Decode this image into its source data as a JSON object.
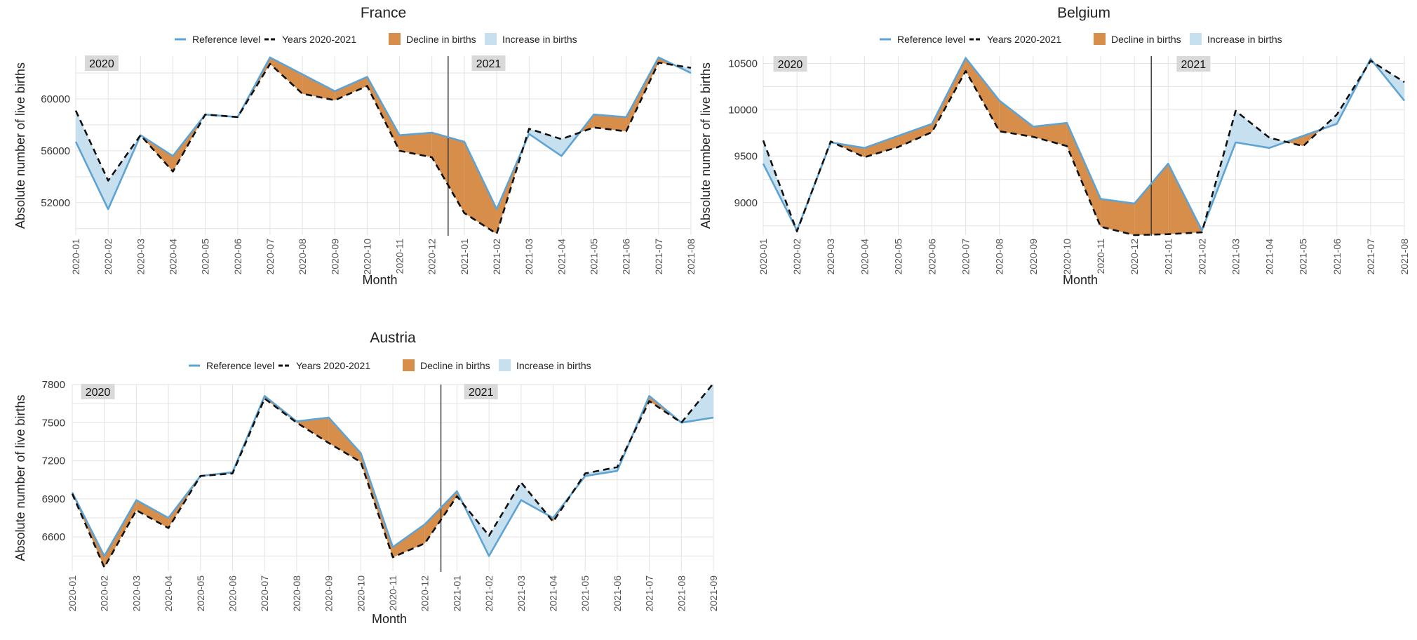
{
  "shared": {
    "legend": {
      "reference": "Reference level",
      "years": "Years 2020-2021",
      "decline": "Decline in births",
      "increase": "Increase in births"
    },
    "xlabel": "Month",
    "ylabel": "Absolute number of live births",
    "year_label_left": "2020",
    "year_label_right": "2021",
    "colors": {
      "reference": "#5fa3d3",
      "years": "#111111",
      "decline": "#d88e4b",
      "increase": "#c6e0f0",
      "grid": "#e3e3e3",
      "year_box": "#d9d9d9",
      "divider": "#333333"
    }
  },
  "chart_data": [
    {
      "type": "line",
      "title": "France",
      "xlabel": "Month",
      "ylabel": "Absolute number of live births",
      "x": [
        "2020-01",
        "2020-02",
        "2020-03",
        "2020-04",
        "2020-05",
        "2020-06",
        "2020-07",
        "2020-08",
        "2020-09",
        "2020-10",
        "2020-11",
        "2020-12",
        "2021-01",
        "2021-02",
        "2021-03",
        "2021-04",
        "2021-05",
        "2021-06",
        "2021-07",
        "2021-08"
      ],
      "yticks": [
        52000,
        56000,
        60000
      ],
      "ylim": [
        49500,
        63300
      ],
      "divider_between": [
        "2020-12",
        "2021-01"
      ],
      "legend_position": "top",
      "series": [
        {
          "name": "Reference level",
          "values": [
            56700,
            51500,
            57200,
            55600,
            58800,
            58600,
            63200,
            61900,
            60600,
            61700,
            57200,
            57400,
            56700,
            51500,
            57300,
            55600,
            58800,
            58600,
            63200,
            62000
          ]
        },
        {
          "name": "Years 2020-2021",
          "values": [
            59100,
            53700,
            57200,
            54400,
            58800,
            58600,
            62700,
            60400,
            59900,
            61000,
            56000,
            55500,
            51200,
            49600,
            57700,
            56900,
            57800,
            57500,
            62800,
            62400
          ]
        }
      ]
    },
    {
      "type": "line",
      "title": "Belgium",
      "xlabel": "Month",
      "ylabel": "Absolute number of live births",
      "x": [
        "2020-01",
        "2020-02",
        "2020-03",
        "2020-04",
        "2020-05",
        "2020-06",
        "2020-07",
        "2020-08",
        "2020-09",
        "2020-10",
        "2020-11",
        "2020-12",
        "2021-01",
        "2021-02",
        "2021-03",
        "2021-04",
        "2021-05",
        "2021-06",
        "2021-07",
        "2021-08"
      ],
      "yticks": [
        9000,
        9500,
        10000,
        10500
      ],
      "ylim": [
        8650,
        10580
      ],
      "divider_between": [
        "2020-12",
        "2021-01"
      ],
      "legend_position": "top",
      "series": [
        {
          "name": "Reference level",
          "values": [
            9420,
            8700,
            9650,
            9590,
            9720,
            9850,
            10560,
            10100,
            9820,
            9860,
            9040,
            8990,
            9420,
            8700,
            9650,
            9590,
            9720,
            9850,
            10550,
            10100
          ]
        },
        {
          "name": "Years 2020-2021",
          "values": [
            9670,
            8690,
            9660,
            9490,
            9600,
            9760,
            10420,
            9770,
            9710,
            9610,
            8740,
            8650,
            8660,
            8680,
            9990,
            9700,
            9610,
            9950,
            10530,
            10300
          ]
        }
      ]
    },
    {
      "type": "line",
      "title": "Austria",
      "xlabel": "Month",
      "ylabel": "Absolute number of live births",
      "x": [
        "2020-01",
        "2020-02",
        "2020-03",
        "2020-04",
        "2020-05",
        "2020-06",
        "2020-07",
        "2020-08",
        "2020-09",
        "2020-10",
        "2020-11",
        "2020-12",
        "2021-01",
        "2021-02",
        "2021-03",
        "2021-04",
        "2021-05",
        "2021-06",
        "2021-07",
        "2021-08",
        "2021-09"
      ],
      "yticks": [
        6600,
        6900,
        7200,
        7500,
        7800
      ],
      "ylim": [
        6330,
        7800
      ],
      "divider_between": [
        "2020-12",
        "2021-01"
      ],
      "legend_position": "top",
      "series": [
        {
          "name": "Reference level",
          "values": [
            6950,
            6450,
            6890,
            6750,
            7080,
            7110,
            7710,
            7510,
            7540,
            7260,
            6520,
            6700,
            6960,
            6450,
            6890,
            6750,
            7080,
            7120,
            7710,
            7500,
            7540
          ]
        },
        {
          "name": "Years 2020-2021",
          "values": [
            6940,
            6360,
            6810,
            6670,
            7080,
            7100,
            7690,
            7500,
            7340,
            7190,
            6440,
            6550,
            6920,
            6610,
            7030,
            6720,
            7100,
            7150,
            7670,
            7500,
            7810
          ]
        }
      ]
    }
  ]
}
